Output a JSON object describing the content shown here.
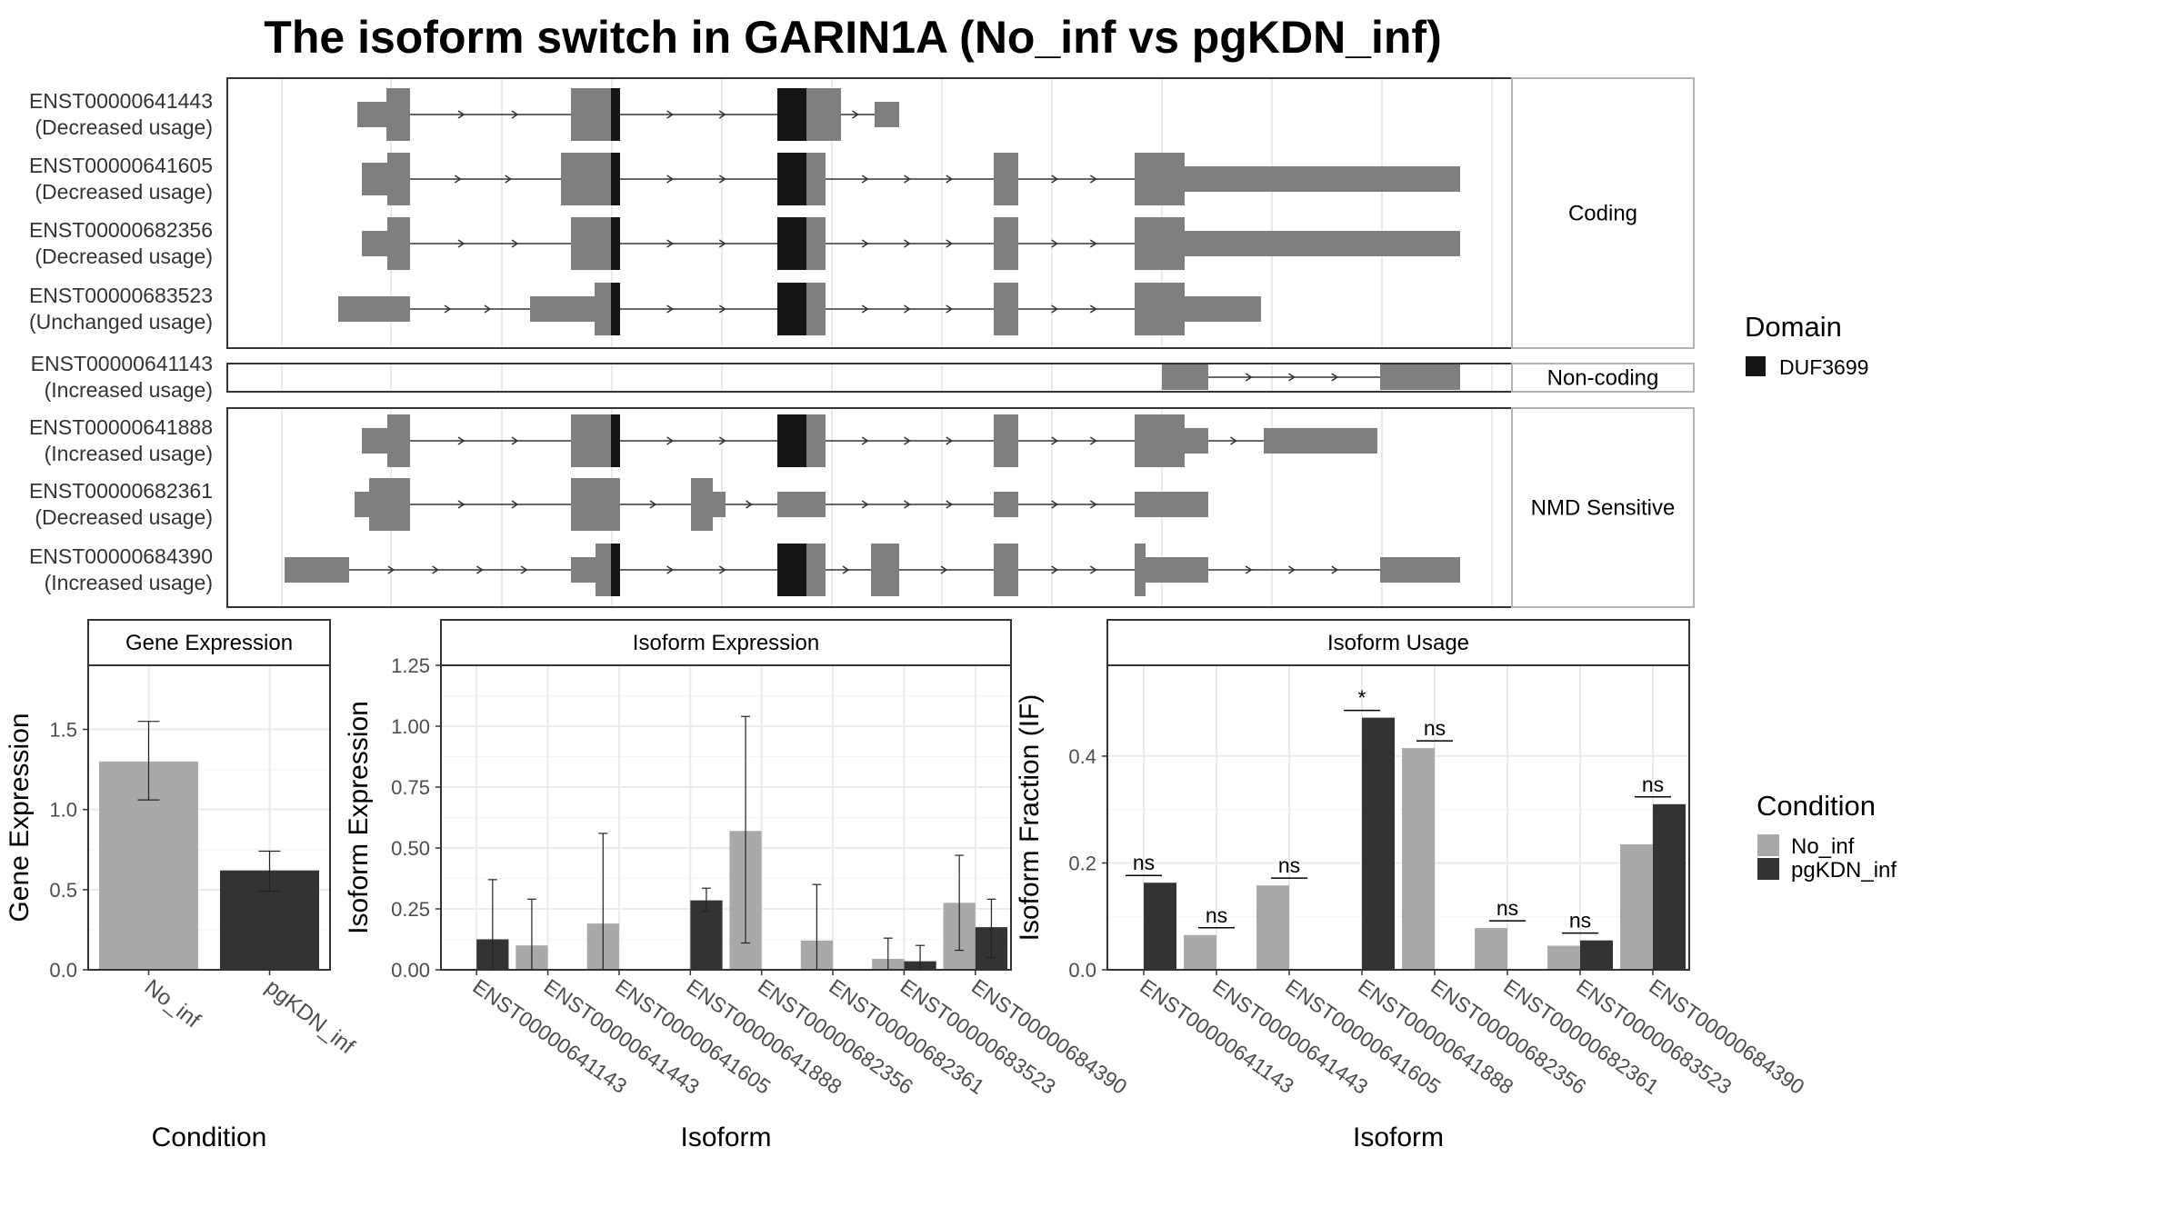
{
  "title": "The isoform switch in GARIN1A (No_inf vs pgKDN_inf)",
  "colors": {
    "no_inf": "#a9a9a9",
    "pgkdn_inf": "#333333",
    "exon": "#7f7f7f",
    "domain": "#151515",
    "grid": "#ebebeb"
  },
  "structure": {
    "facets": [
      "Coding",
      "Non-coding",
      "NMD Sensitive"
    ],
    "legend": {
      "title": "Domain",
      "items": [
        {
          "label": "DUF3699",
          "color": "#151515"
        }
      ]
    },
    "transcripts": [
      {
        "id": "ENST00000641443",
        "usage": "(Decreased usage)",
        "facet": 0
      },
      {
        "id": "ENST00000641605",
        "usage": "(Decreased usage)",
        "facet": 0
      },
      {
        "id": "ENST00000682356",
        "usage": "(Decreased usage)",
        "facet": 0
      },
      {
        "id": "ENST00000683523",
        "usage": "(Unchanged usage)",
        "facet": 0
      },
      {
        "id": "ENST00000641143",
        "usage": "(Increased usage)",
        "facet": 1
      },
      {
        "id": "ENST00000641888",
        "usage": "(Increased usage)",
        "facet": 2
      },
      {
        "id": "ENST00000682361",
        "usage": "(Decreased usage)",
        "facet": 2
      },
      {
        "id": "ENST00000684390",
        "usage": "(Increased usage)",
        "facet": 2
      }
    ]
  },
  "condition_legend": {
    "title": "Condition",
    "items": [
      {
        "label": "No_inf",
        "color": "#a9a9a9"
      },
      {
        "label": "pgKDN_inf",
        "color": "#333333"
      }
    ]
  },
  "chart_data": [
    {
      "type": "bar",
      "title": "Gene Expression",
      "xlabel": "Condition",
      "ylabel": "Gene Expression",
      "ylim": [
        0,
        1.9
      ],
      "yticks": [
        0.0,
        0.5,
        1.0,
        1.5
      ],
      "ytick_labels": [
        "0.0",
        "0.5",
        "1.0",
        "1.5"
      ],
      "categories": [
        "No_inf",
        "pgKDN_inf"
      ],
      "values": [
        1.3,
        0.62
      ],
      "errors_low": [
        1.06,
        0.49
      ],
      "errors_high": [
        1.55,
        0.74
      ],
      "grid": true
    },
    {
      "type": "bar",
      "title": "Isoform Expression",
      "xlabel": "Isoform",
      "ylabel": "Isoform Expression",
      "ylim": [
        0,
        1.25
      ],
      "yticks": [
        0.0,
        0.25,
        0.5,
        0.75,
        1.0,
        1.25
      ],
      "ytick_labels": [
        "0.00",
        "0.25",
        "0.50",
        "0.75",
        "1.00",
        "1.25"
      ],
      "categories": [
        "ENST00000641143",
        "ENST00000641443",
        "ENST00000641605",
        "ENST00000641888",
        "ENST00000682356",
        "ENST00000682361",
        "ENST00000683523",
        "ENST00000684390"
      ],
      "series": [
        {
          "name": "No_inf",
          "values": [
            0,
            0.1,
            0.19,
            0,
            0.57,
            0.12,
            0.045,
            0.275
          ],
          "err_low": [
            0,
            0,
            0,
            0,
            0.11,
            0,
            0,
            0.08
          ],
          "err_high": [
            0,
            0.29,
            0.56,
            0,
            1.04,
            0.35,
            0.13,
            0.47
          ]
        },
        {
          "name": "pgKDN_inf",
          "values": [
            0.125,
            0,
            0,
            0.285,
            0,
            0,
            0.035,
            0.175
          ],
          "err_low": [
            0,
            0,
            0,
            0.24,
            0,
            0,
            0,
            0.05
          ],
          "err_high": [
            0.37,
            0,
            0,
            0.335,
            0,
            0,
            0.1,
            0.29
          ]
        }
      ],
      "grid": true
    },
    {
      "type": "bar",
      "title": "Isoform Usage",
      "xlabel": "Isoform",
      "ylabel": "Isoform Fraction (IF)",
      "ylim": [
        0,
        0.57
      ],
      "yticks": [
        0.0,
        0.2,
        0.4
      ],
      "ytick_labels": [
        "0.0",
        "0.2",
        "0.4"
      ],
      "categories": [
        "ENST00000641143",
        "ENST00000641443",
        "ENST00000641605",
        "ENST00000641888",
        "ENST00000682356",
        "ENST00000682361",
        "ENST00000683523",
        "ENST00000684390"
      ],
      "series": [
        {
          "name": "No_inf",
          "values": [
            0,
            0.065,
            0.158,
            0,
            0.415,
            0.078,
            0.045,
            0.235
          ]
        },
        {
          "name": "pgKDN_inf",
          "values": [
            0.163,
            0,
            0,
            0.472,
            0,
            0,
            0.055,
            0.31
          ]
        }
      ],
      "significance": [
        "ns",
        "ns",
        "ns",
        "*",
        "ns",
        "ns",
        "ns",
        "ns"
      ],
      "grid": true
    }
  ]
}
